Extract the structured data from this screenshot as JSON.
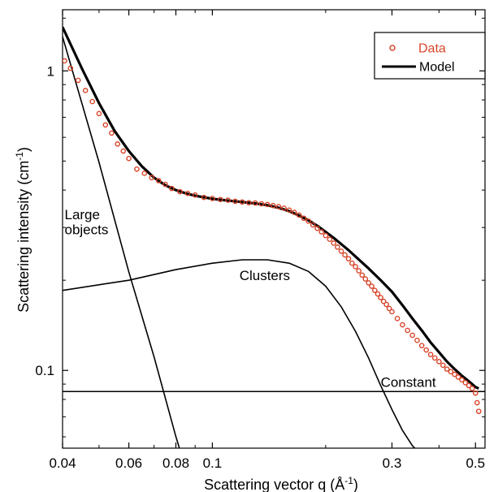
{
  "chart_data": {
    "type": "scatter",
    "title": "",
    "xlabel": "Scattering vector q (Å",
    "xlabel_sup": "-1",
    "xlabel_end": ")",
    "ylabel": "Scattering intensity (cm",
    "ylabel_sup": "-1",
    "ylabel_end": ")",
    "x_scale": "log",
    "y_scale": "log",
    "xlim": [
      0.04,
      0.53
    ],
    "ylim": [
      0.055,
      1.6
    ],
    "x_ticks": [
      {
        "value": 0.04,
        "label": "0.04"
      },
      {
        "value": 0.06,
        "label": "0.06"
      },
      {
        "value": 0.08,
        "label": "0.08"
      },
      {
        "value": 0.1,
        "label": "0.1"
      },
      {
        "value": 0.3,
        "label": "0.3"
      },
      {
        "value": 0.5,
        "label": "0.5"
      }
    ],
    "y_ticks": [
      {
        "value": 0.1,
        "label": "0.1"
      },
      {
        "value": 1,
        "label": "1"
      }
    ],
    "legend": {
      "position": "top-right",
      "entries": [
        {
          "label": "Data",
          "style": "circle",
          "color": "#d8452a"
        },
        {
          "label": "Model",
          "style": "line",
          "color": "#000000"
        }
      ]
    },
    "colors": {
      "data": "#d8452a",
      "model": "#000000",
      "components": "#000000"
    },
    "series": [
      {
        "name": "Data",
        "kind": "points",
        "x": [
          0.0405,
          0.042,
          0.044,
          0.046,
          0.048,
          0.05,
          0.052,
          0.054,
          0.056,
          0.058,
          0.06,
          0.063,
          0.066,
          0.069,
          0.072,
          0.075,
          0.078,
          0.082,
          0.086,
          0.09,
          0.095,
          0.1,
          0.105,
          0.11,
          0.115,
          0.12,
          0.125,
          0.13,
          0.135,
          0.14,
          0.145,
          0.15,
          0.155,
          0.16,
          0.165,
          0.17,
          0.175,
          0.18,
          0.185,
          0.19,
          0.195,
          0.2,
          0.205,
          0.21,
          0.215,
          0.22,
          0.225,
          0.23,
          0.235,
          0.24,
          0.245,
          0.25,
          0.255,
          0.26,
          0.265,
          0.27,
          0.275,
          0.28,
          0.285,
          0.29,
          0.295,
          0.3,
          0.31,
          0.32,
          0.33,
          0.34,
          0.35,
          0.36,
          0.37,
          0.38,
          0.39,
          0.4,
          0.41,
          0.42,
          0.43,
          0.44,
          0.45,
          0.46,
          0.47,
          0.48,
          0.49,
          0.5,
          0.505,
          0.51
        ],
        "y": [
          1.08,
          1.02,
          0.93,
          0.86,
          0.79,
          0.72,
          0.66,
          0.62,
          0.57,
          0.54,
          0.51,
          0.47,
          0.455,
          0.44,
          0.43,
          0.418,
          0.405,
          0.395,
          0.39,
          0.385,
          0.378,
          0.375,
          0.372,
          0.37,
          0.367,
          0.365,
          0.363,
          0.362,
          0.36,
          0.358,
          0.355,
          0.352,
          0.348,
          0.343,
          0.337,
          0.33,
          0.322,
          0.315,
          0.306,
          0.298,
          0.29,
          0.282,
          0.274,
          0.266,
          0.258,
          0.25,
          0.243,
          0.236,
          0.228,
          0.222,
          0.215,
          0.208,
          0.202,
          0.196,
          0.191,
          0.185,
          0.18,
          0.175,
          0.17,
          0.166,
          0.161,
          0.157,
          0.149,
          0.142,
          0.136,
          0.131,
          0.126,
          0.121,
          0.117,
          0.113,
          0.11,
          0.107,
          0.104,
          0.101,
          0.099,
          0.097,
          0.095,
          0.093,
          0.091,
          0.089,
          0.087,
          0.084,
          0.078,
          0.073
        ]
      },
      {
        "name": "Model",
        "kind": "line",
        "x": [
          0.04,
          0.045,
          0.05,
          0.055,
          0.06,
          0.065,
          0.07,
          0.075,
          0.08,
          0.085,
          0.09,
          0.1,
          0.11,
          0.12,
          0.13,
          0.14,
          0.15,
          0.16,
          0.17,
          0.18,
          0.19,
          0.2,
          0.21,
          0.22,
          0.23,
          0.24,
          0.25,
          0.26,
          0.28,
          0.3,
          0.32,
          0.34,
          0.36,
          0.38,
          0.4,
          0.42,
          0.44,
          0.46,
          0.48,
          0.5,
          0.51
        ],
        "y": [
          1.4,
          1.02,
          0.78,
          0.63,
          0.54,
          0.48,
          0.44,
          0.415,
          0.4,
          0.39,
          0.383,
          0.374,
          0.369,
          0.365,
          0.361,
          0.356,
          0.349,
          0.34,
          0.329,
          0.317,
          0.304,
          0.29,
          0.277,
          0.264,
          0.252,
          0.24,
          0.229,
          0.219,
          0.2,
          0.183,
          0.165,
          0.149,
          0.136,
          0.124,
          0.115,
          0.107,
          0.101,
          0.096,
          0.092,
          0.088,
          0.087
        ]
      },
      {
        "name": "",
        "kind": "component",
        "label": "Large objects",
        "x": [
          0.04,
          0.05,
          0.06,
          0.07,
          0.08,
          0.085
        ],
        "y": [
          1.3,
          0.495,
          0.213,
          0.111,
          0.0601,
          0.0468
        ]
      },
      {
        "name": "",
        "kind": "component",
        "label": "Clusters",
        "x": [
          0.04,
          0.06,
          0.08,
          0.1,
          0.12,
          0.14,
          0.16,
          0.18,
          0.2,
          0.22,
          0.24,
          0.26,
          0.28,
          0.3,
          0.32,
          0.34,
          0.345
        ],
        "y": [
          0.185,
          0.2,
          0.217,
          0.228,
          0.234,
          0.234,
          0.228,
          0.214,
          0.191,
          0.163,
          0.135,
          0.11,
          0.089,
          0.074,
          0.063,
          0.056,
          0.055
        ]
      },
      {
        "name": "",
        "kind": "component",
        "label": "Constant",
        "x": [
          0.04,
          0.53
        ],
        "y": [
          0.085,
          0.085
        ]
      }
    ],
    "annotations": [
      {
        "text": "Large",
        "x": 0.0405,
        "y": 0.32
      },
      {
        "text": "objects",
        "x": 0.0405,
        "y": 0.285
      },
      {
        "text": "Clusters",
        "x": 0.118,
        "y": 0.2
      },
      {
        "text": "Constant",
        "x": 0.28,
        "y": 0.088
      }
    ]
  }
}
